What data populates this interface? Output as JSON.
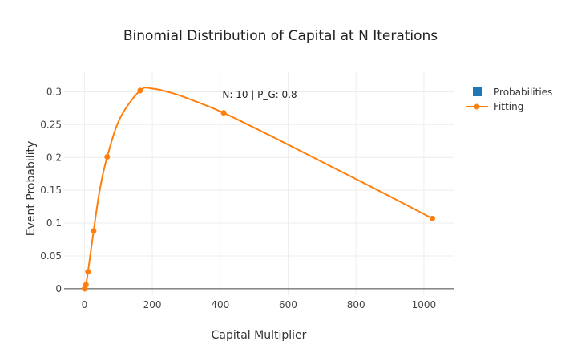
{
  "chart_data": {
    "type": "line",
    "title": "Binomial Distribution of Capital at N Iterations",
    "xlabel": "Capital Multiplier",
    "ylabel": "Event Probability",
    "xlim": [
      -60,
      1090
    ],
    "ylim": [
      -0.01,
      0.33
    ],
    "xticks": [
      0,
      200,
      400,
      600,
      800,
      1000
    ],
    "yticks": [
      0,
      0.05,
      0.1,
      0.15,
      0.2,
      0.25,
      0.3
    ],
    "ytick_labels": [
      "0",
      "0.05",
      "0.1",
      "0.15",
      "0.2",
      "0.25",
      "0.3"
    ],
    "grid": true,
    "legend_position": "top-right",
    "annotation": "N: 10 | P_G: 0.8",
    "series": [
      {
        "name": "Probabilities",
        "kind": "bar",
        "color": "#1f77b4",
        "values": []
      },
      {
        "name": "Fitting",
        "kind": "line+markers",
        "color": "#ff7f0e",
        "points": [
          [
            0.3,
            0.0
          ],
          [
            1.5,
            0.0
          ],
          [
            4.5,
            0.006
          ],
          [
            10.5,
            0.026
          ],
          [
            27.0,
            0.088
          ],
          [
            67.0,
            0.201
          ],
          [
            164.0,
            0.302
          ],
          [
            410.0,
            0.268
          ],
          [
            1025.0,
            0.107
          ]
        ],
        "curve_points": [
          [
            0.3,
            0.0
          ],
          [
            1.5,
            0.0
          ],
          [
            4.5,
            0.006
          ],
          [
            10.5,
            0.026
          ],
          [
            27.0,
            0.088
          ],
          [
            45.0,
            0.15
          ],
          [
            67.0,
            0.201
          ],
          [
            105.0,
            0.26
          ],
          [
            164.0,
            0.302
          ],
          [
            200.0,
            0.305
          ],
          [
            260.0,
            0.298
          ],
          [
            330.0,
            0.285
          ],
          [
            410.0,
            0.268
          ],
          [
            560.0,
            0.23
          ],
          [
            720.0,
            0.188
          ],
          [
            880.0,
            0.146
          ],
          [
            1025.0,
            0.107
          ]
        ]
      }
    ]
  }
}
